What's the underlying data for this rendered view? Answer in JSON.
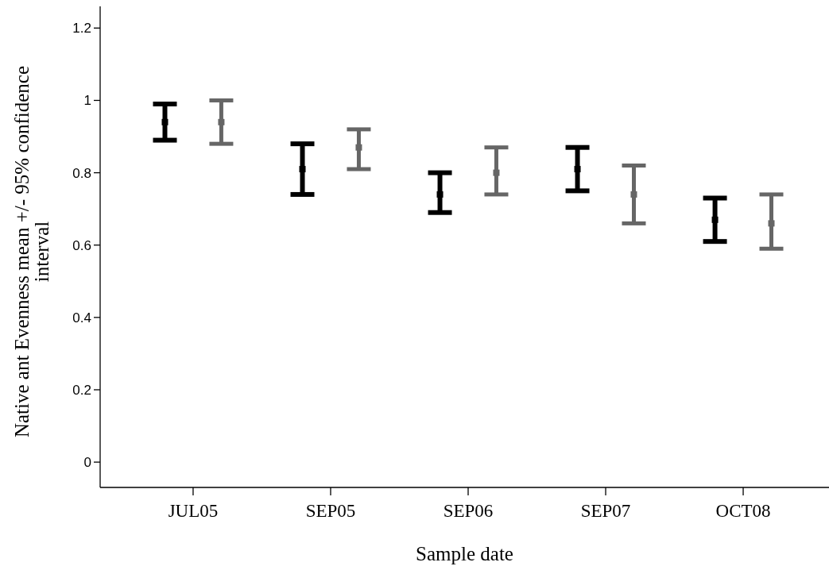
{
  "chart_data": {
    "type": "scatter",
    "xlabel": "Sample date",
    "ylabel": "Native ant Evenness mean +/- 95% confidence interval",
    "categories": [
      "JUL05",
      "SEP05",
      "SEP06",
      "SEP07",
      "OCT08"
    ],
    "series": [
      {
        "color": "#000000",
        "values": [
          0.94,
          0.81,
          0.74,
          0.81,
          0.67
        ],
        "errors": [
          [
            0.89,
            0.99
          ],
          [
            0.74,
            0.88
          ],
          [
            0.69,
            0.8
          ],
          [
            0.75,
            0.87
          ],
          [
            0.61,
            0.73
          ]
        ]
      },
      {
        "color": "#666666",
        "values": [
          0.94,
          0.87,
          0.8,
          0.74,
          0.66
        ],
        "errors": [
          [
            0.88,
            1.0
          ],
          [
            0.81,
            0.92
          ],
          [
            0.74,
            0.87
          ],
          [
            0.66,
            0.82
          ],
          [
            0.59,
            0.74
          ]
        ]
      }
    ],
    "ylim": [
      -0.07,
      1.26
    ],
    "yticks": [
      0,
      0.2,
      0.4,
      0.6,
      0.8,
      1,
      1.2
    ],
    "grid": false,
    "marker": "square"
  }
}
